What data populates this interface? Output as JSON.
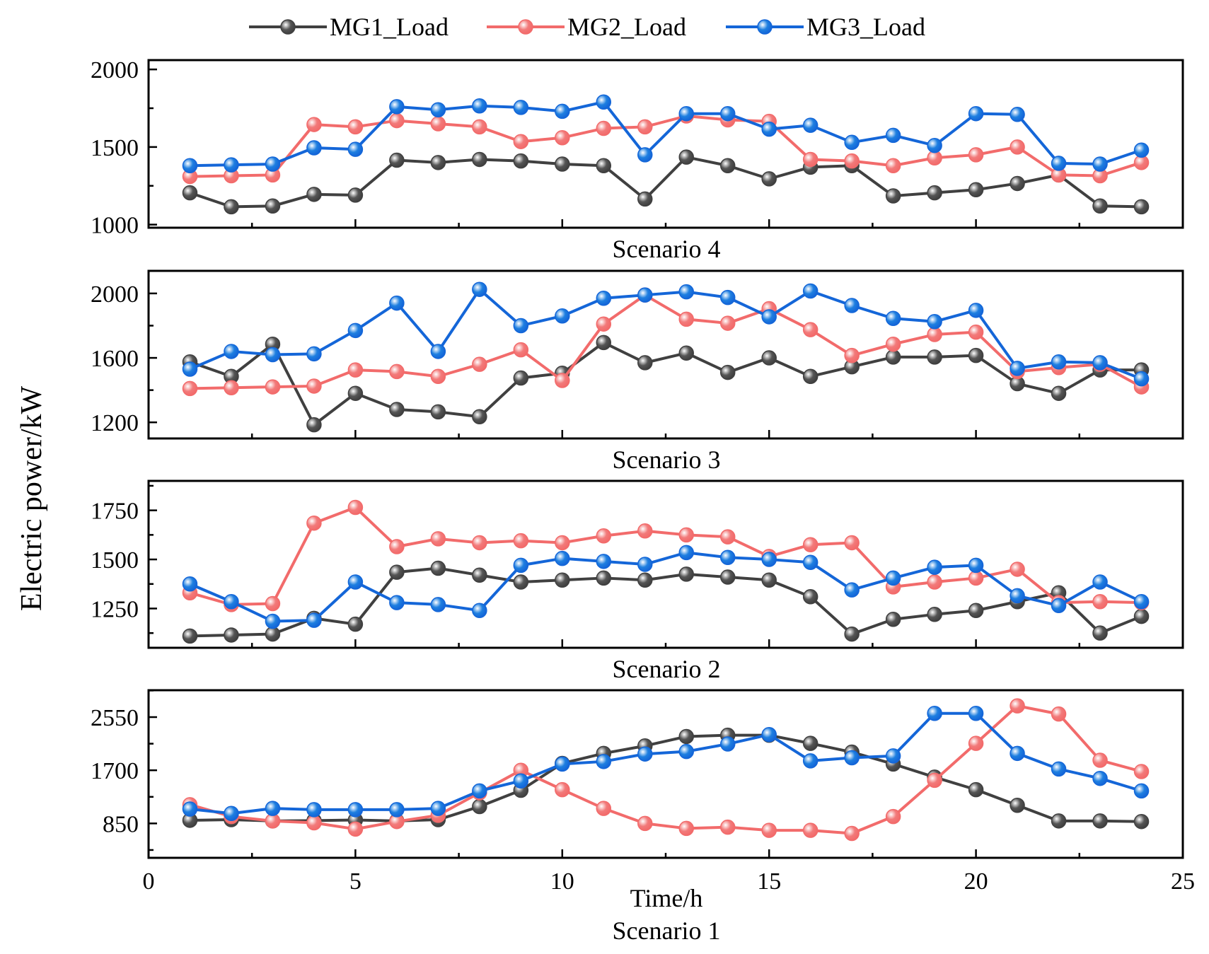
{
  "chart_data": {
    "type": "line",
    "ylabel": "Electric power/kW",
    "xlabel": "Time/h",
    "xlim": [
      0,
      25
    ],
    "x_ticks": [
      0,
      5,
      10,
      15,
      20,
      25
    ],
    "x": [
      1,
      2,
      3,
      4,
      5,
      6,
      7,
      8,
      9,
      10,
      11,
      12,
      13,
      14,
      15,
      16,
      17,
      18,
      19,
      20,
      21,
      22,
      23,
      24
    ],
    "legend": [
      {
        "name": "MG1_Load",
        "color": "#555555",
        "line": "#404040"
      },
      {
        "name": "MG2_Load",
        "color": "#f27a7a",
        "line": "#f26b6b"
      },
      {
        "name": "MG3_Load",
        "color": "#1e7fe0",
        "line": "#1466d8"
      }
    ],
    "panels": [
      {
        "title": "Scenario 4",
        "ylim": [
          980,
          2060
        ],
        "yticks": [
          1000,
          1500,
          2000
        ],
        "series": [
          {
            "name": "MG1_Load",
            "values": [
              1205,
              1115,
              1120,
              1195,
              1190,
              1415,
              1400,
              1420,
              1410,
              1390,
              1380,
              1165,
              1435,
              1380,
              1295,
              1370,
              1380,
              1185,
              1205,
              1225,
              1265,
              1320,
              1120,
              1115
            ]
          },
          {
            "name": "MG2_Load",
            "values": [
              1310,
              1315,
              1320,
              1645,
              1630,
              1670,
              1650,
              1630,
              1535,
              1560,
              1620,
              1630,
              1700,
              1675,
              1665,
              1420,
              1410,
              1380,
              1430,
              1450,
              1500,
              1320,
              1315,
              1400
            ]
          },
          {
            "name": "MG3_Load",
            "values": [
              1380,
              1385,
              1390,
              1495,
              1485,
              1760,
              1740,
              1765,
              1755,
              1730,
              1790,
              1450,
              1715,
              1715,
              1615,
              1640,
              1530,
              1575,
              1510,
              1715,
              1710,
              1395,
              1390,
              1480
            ]
          }
        ]
      },
      {
        "title": "Scenario 3",
        "ylim": [
          1100,
          2140
        ],
        "yticks": [
          1200,
          1600,
          2000
        ],
        "series": [
          {
            "name": "MG1_Load",
            "values": [
              1575,
              1485,
              1685,
              1185,
              1380,
              1280,
              1265,
              1235,
              1475,
              1505,
              1695,
              1570,
              1630,
              1510,
              1600,
              1485,
              1545,
              1605,
              1605,
              1615,
              1440,
              1380,
              1525,
              1525
            ]
          },
          {
            "name": "MG2_Load",
            "values": [
              1410,
              1415,
              1420,
              1425,
              1525,
              1515,
              1485,
              1560,
              1650,
              1460,
              1810,
              1990,
              1840,
              1815,
              1905,
              1775,
              1615,
              1685,
              1745,
              1760,
              1515,
              1540,
              1560,
              1420
            ]
          },
          {
            "name": "MG3_Load",
            "values": [
              1530,
              1640,
              1620,
              1625,
              1770,
              1940,
              1640,
              2025,
              1800,
              1860,
              1970,
              1990,
              2010,
              1975,
              1855,
              2015,
              1925,
              1845,
              1825,
              1895,
              1535,
              1575,
              1570,
              1470
            ]
          }
        ]
      },
      {
        "title": "Scenario 2",
        "ylim": [
          1050,
          1900
        ],
        "yticks": [
          1250,
          1500,
          1750
        ],
        "series": [
          {
            "name": "MG1_Load",
            "values": [
              1110,
              1115,
              1120,
              1200,
              1170,
              1435,
              1455,
              1420,
              1385,
              1395,
              1405,
              1395,
              1425,
              1410,
              1395,
              1310,
              1120,
              1195,
              1220,
              1240,
              1285,
              1330,
              1125,
              1210
            ]
          },
          {
            "name": "MG2_Load",
            "values": [
              1330,
              1270,
              1275,
              1685,
              1765,
              1565,
              1605,
              1585,
              1595,
              1585,
              1620,
              1645,
              1625,
              1615,
              1515,
              1575,
              1585,
              1360,
              1385,
              1405,
              1450,
              1280,
              1285,
              1280
            ]
          },
          {
            "name": "MG3_Load",
            "values": [
              1375,
              1285,
              1185,
              1190,
              1385,
              1280,
              1270,
              1240,
              1470,
              1505,
              1490,
              1475,
              1535,
              1510,
              1500,
              1485,
              1345,
              1405,
              1460,
              1470,
              1315,
              1265,
              1385,
              1285
            ]
          }
        ]
      },
      {
        "title": "Scenario 1",
        "ylim": [
          300,
          2980
        ],
        "yticks": [
          850,
          1700,
          2550
        ],
        "series": [
          {
            "name": "MG1_Load",
            "values": [
              900,
              910,
              890,
              895,
              905,
              890,
              910,
              1120,
              1380,
              1810,
              1970,
              2090,
              2240,
              2260,
              2260,
              2130,
              1990,
              1800,
              1590,
              1390,
              1140,
              890,
              890,
              880
            ]
          },
          {
            "name": "MG2_Load",
            "values": [
              1150,
              960,
              890,
              860,
              760,
              880,
              980,
              1340,
              1700,
              1390,
              1090,
              850,
              770,
              790,
              740,
              740,
              690,
              960,
              1540,
              2130,
              2730,
              2600,
              1860,
              1680
            ]
          },
          {
            "name": "MG3_Load",
            "values": [
              1080,
              1010,
              1090,
              1070,
              1070,
              1070,
              1090,
              1370,
              1530,
              1800,
              1840,
              1960,
              2000,
              2120,
              2270,
              1850,
              1900,
              1930,
              2610,
              2610,
              1970,
              1720,
              1570,
              1370
            ]
          }
        ]
      }
    ]
  }
}
